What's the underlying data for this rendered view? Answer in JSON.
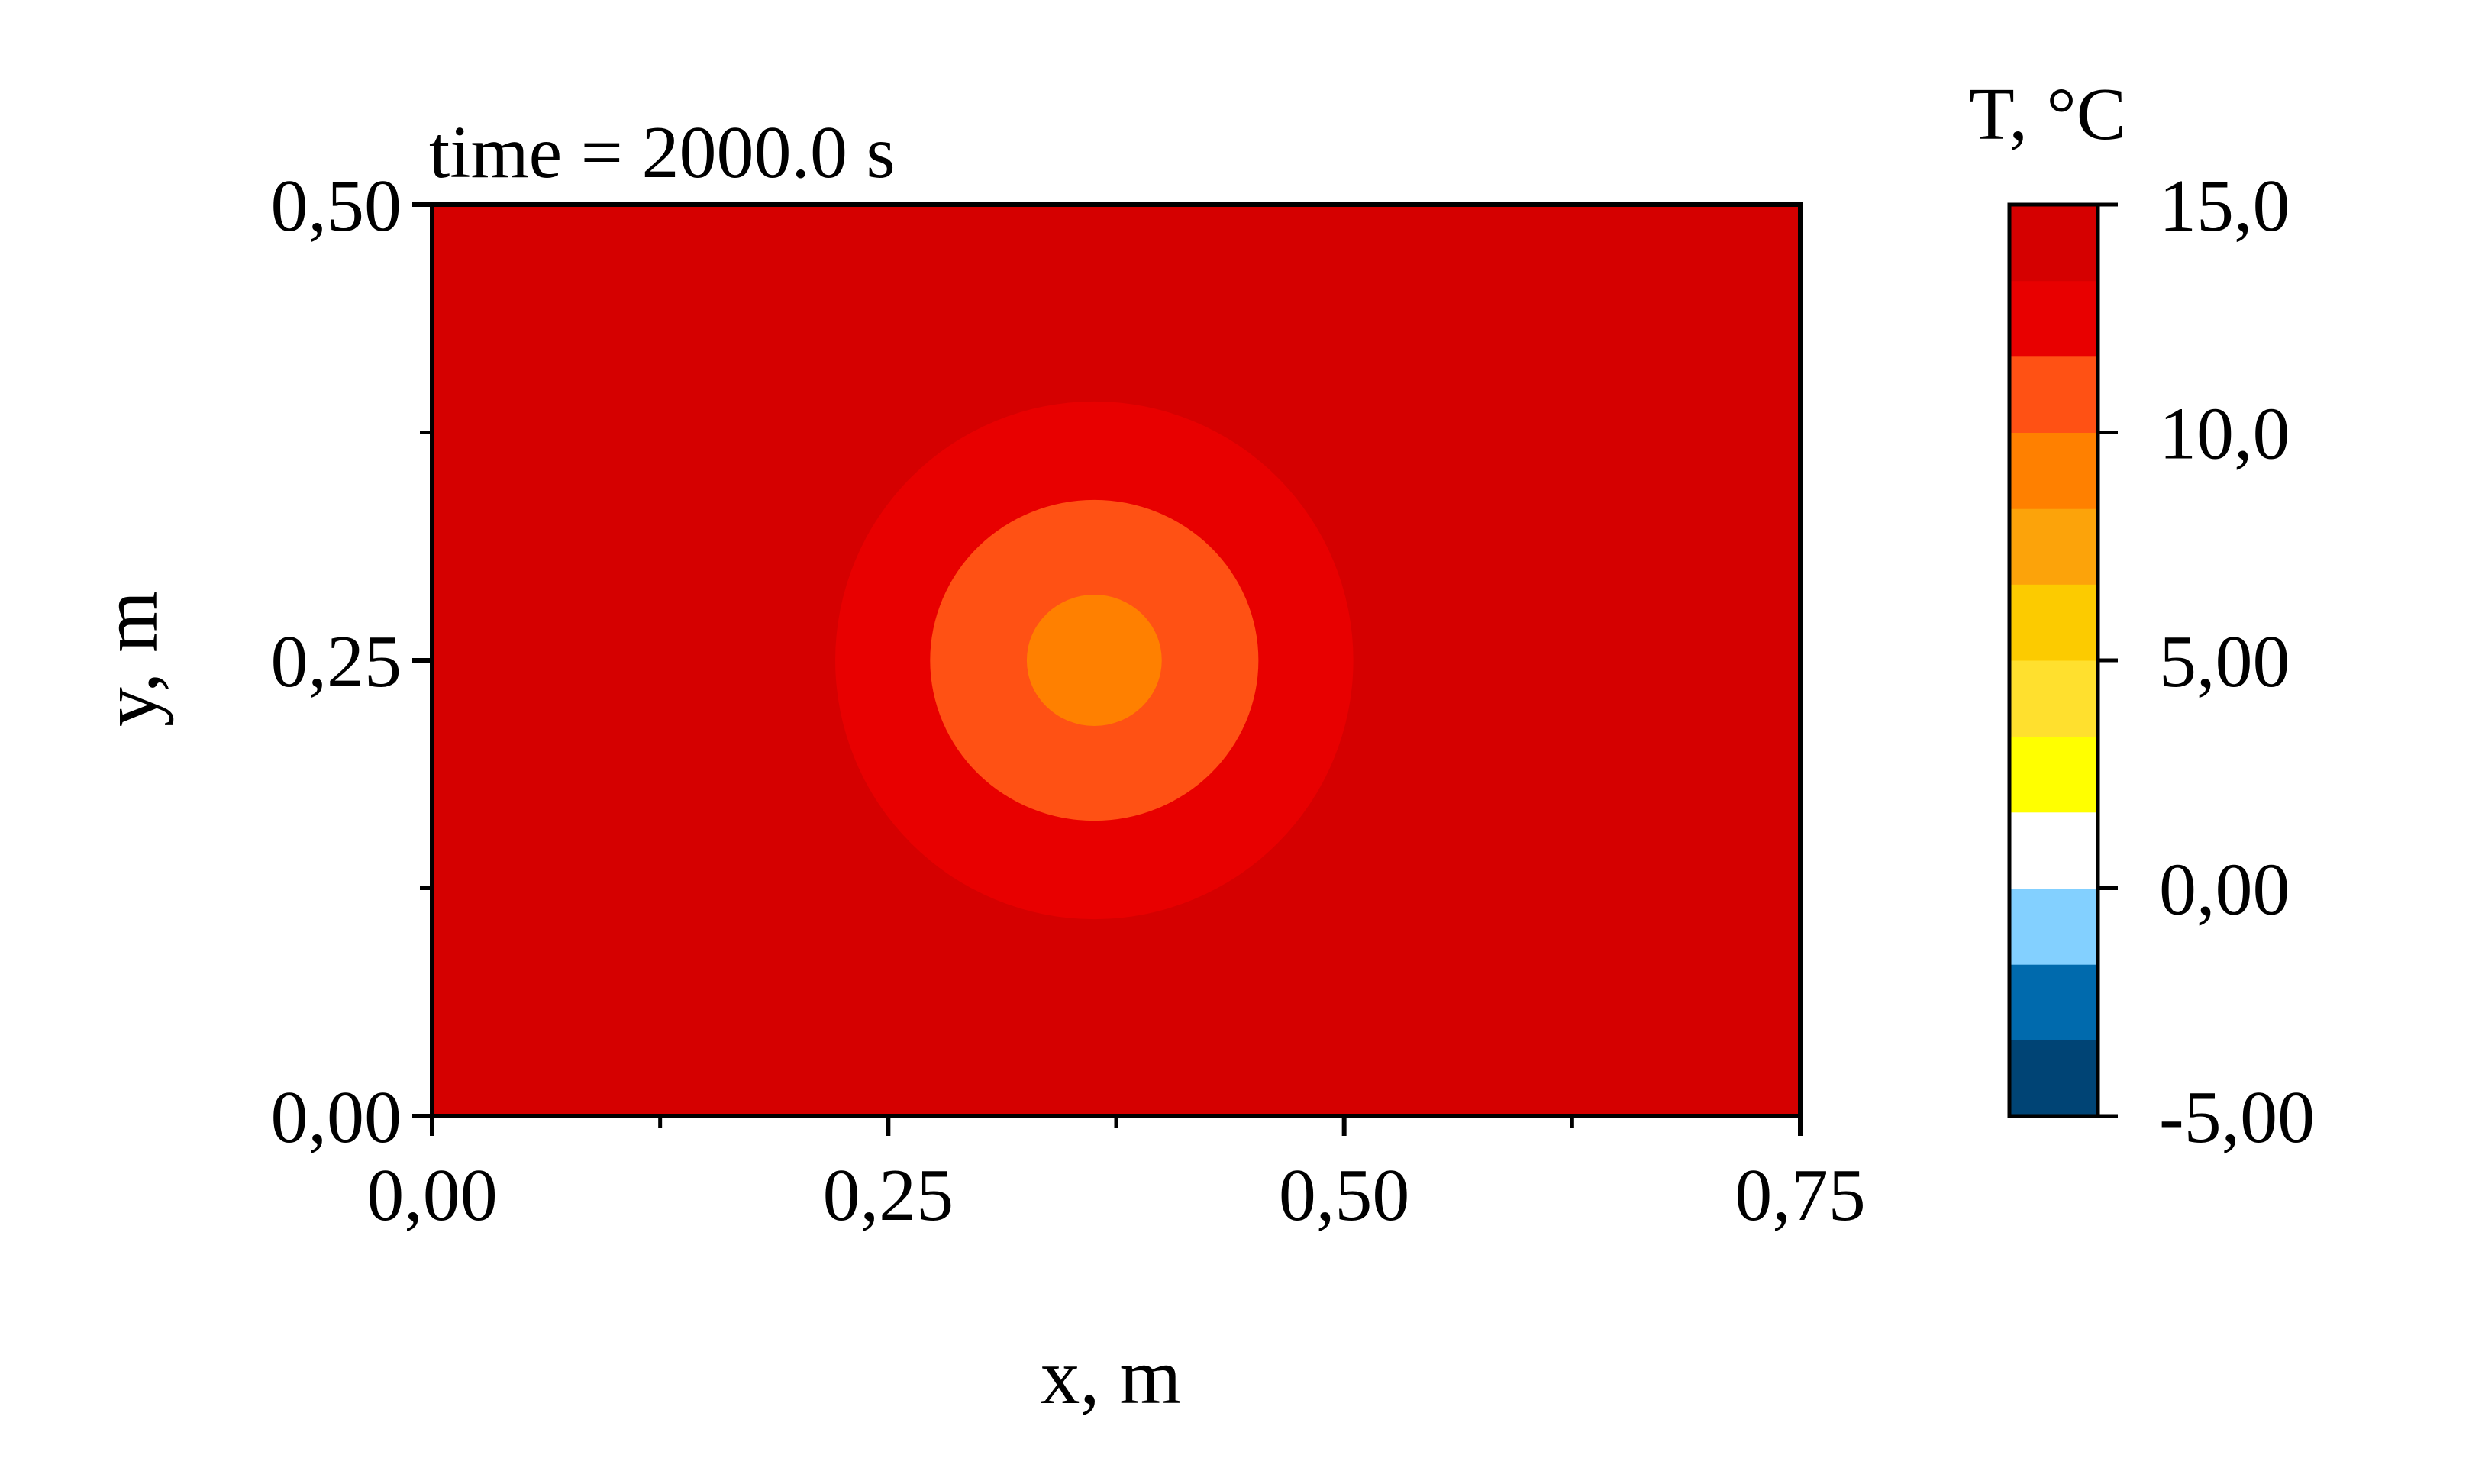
{
  "chart_data": {
    "type": "heatmap",
    "title": "time = 2000.0 s",
    "xlabel": "x, m",
    "ylabel": "y, m",
    "xlim": [
      0,
      0.75
    ],
    "ylim": [
      0,
      0.5
    ],
    "x_ticks": [
      0,
      0.25,
      0.5,
      0.75
    ],
    "x_tick_labels": [
      "0,00",
      "0,25",
      "0,50",
      "0,75"
    ],
    "y_ticks": [
      0,
      0.25,
      0.5
    ],
    "y_tick_labels": [
      "0,00",
      "0,25",
      "0,50"
    ],
    "x_minor_ticks": [
      0.125,
      0.375,
      0.625
    ],
    "y_minor_ticks": [
      0.125,
      0.375
    ],
    "background_level_color": "#d50000",
    "contours": [
      {
        "cx": 0.363,
        "cy": 0.25,
        "rx": 0.142,
        "ry": 0.142,
        "color": "#e80000"
      },
      {
        "cx": 0.363,
        "cy": 0.25,
        "rx": 0.09,
        "ry": 0.088,
        "color": "#ff5114"
      },
      {
        "cx": 0.363,
        "cy": 0.25,
        "rx": 0.037,
        "ry": 0.036,
        "color": "#ff8000"
      }
    ],
    "colorbar": {
      "title": "T, °C",
      "min": -5,
      "max": 15,
      "levels": [
        {
          "from": -5.0,
          "to": -3.33,
          "color": "#004475"
        },
        {
          "from": -3.33,
          "to": -1.67,
          "color": "#006aad"
        },
        {
          "from": -1.67,
          "to": 0.0,
          "color": "#83d0ff"
        },
        {
          "from": 0.0,
          "to": 1.67,
          "color": "#ffffff"
        },
        {
          "from": 1.67,
          "to": 3.33,
          "color": "#ffff00"
        },
        {
          "from": 3.33,
          "to": 5.0,
          "color": "#ffe02e"
        },
        {
          "from": 5.0,
          "to": 6.67,
          "color": "#fccb00"
        },
        {
          "from": 6.67,
          "to": 8.33,
          "color": "#fca30a"
        },
        {
          "from": 8.33,
          "to": 10.0,
          "color": "#ff8000"
        },
        {
          "from": 10.0,
          "to": 11.67,
          "color": "#ff5114"
        },
        {
          "from": 11.67,
          "to": 13.33,
          "color": "#e80000"
        },
        {
          "from": 13.33,
          "to": 15.0,
          "color": "#d50000"
        }
      ],
      "ticks": [
        -5,
        0,
        5,
        10,
        15
      ],
      "tick_labels": [
        "-5,00",
        "0,00",
        "5,00",
        "10,0",
        "15,0"
      ]
    }
  }
}
